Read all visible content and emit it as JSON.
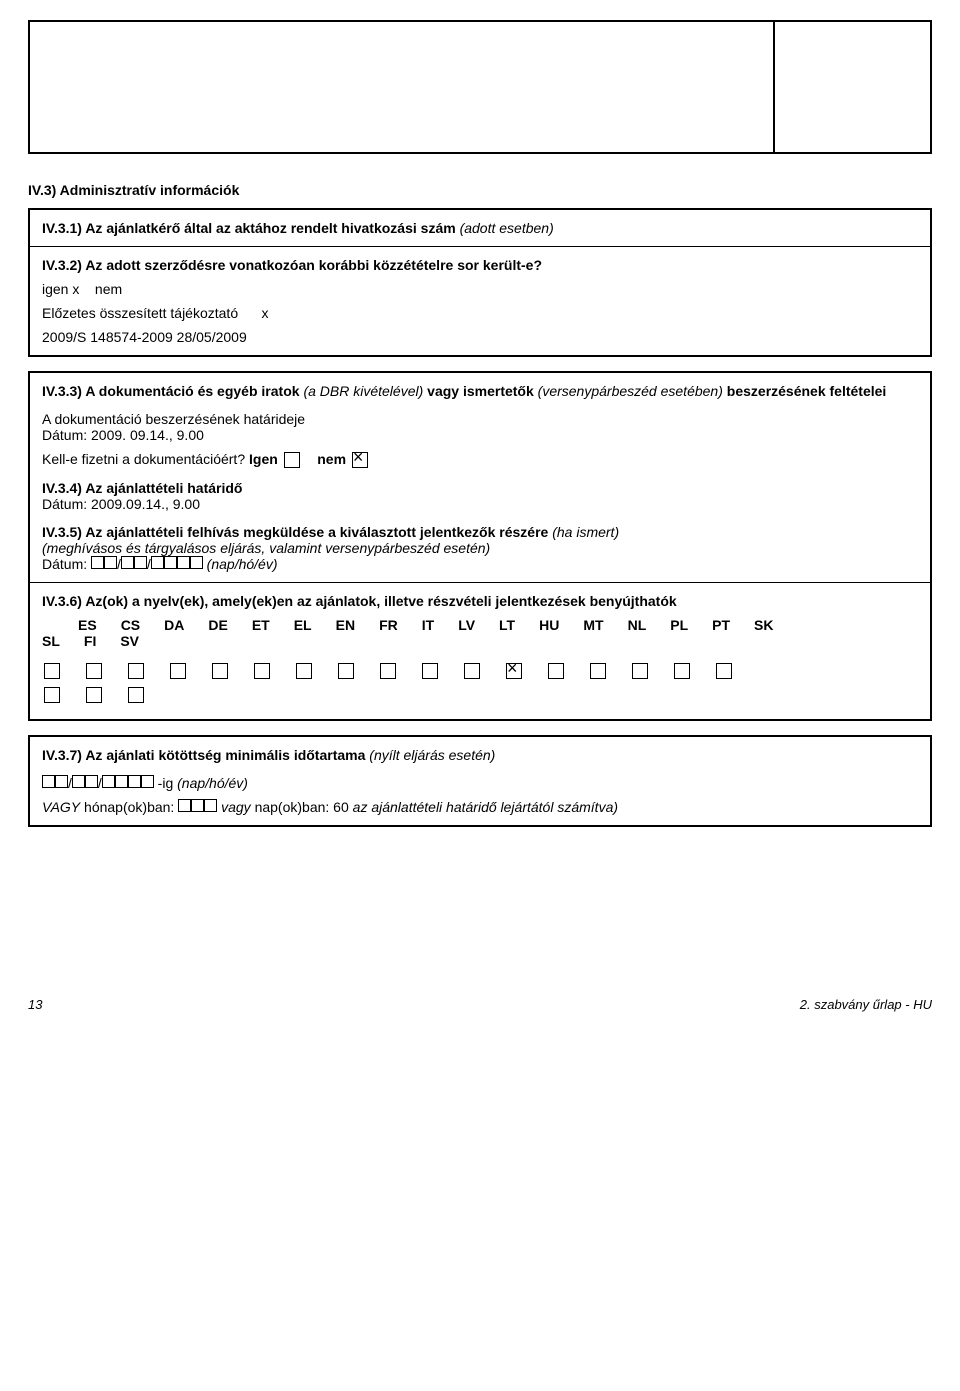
{
  "section_title": "IV.3) Adminisztratív információk",
  "box1": {
    "iv31": {
      "label_bold": "IV.3.1) Az ajánlatkérő által az aktához rendelt hivatkozási szám",
      "label_italic": " (adott esetben)"
    },
    "iv32": {
      "label": "IV.3.2) Az adott szerződésre vonatkozóan korábbi közzétételre sor került-e?",
      "yes": "igen",
      "yes_mark": "x",
      "no": "nem",
      "line2a": "Előzetes összesített tájékoztató",
      "line2_mark": "x",
      "ref": "2009/S 148574-2009 28/05/2009"
    }
  },
  "box2": {
    "iv33": {
      "label_bold": "IV.3.3) A dokumentáció és egyéb iratok ",
      "label_italic": "(a DBR kivételével)",
      "label_bold2": " vagy ismertetők ",
      "label_italic2": "(versenypárbeszéd esetében)",
      "label_bold3": " beszerzésének feltételei",
      "deadline_label": "A dokumentáció beszerzésének határideje",
      "deadline_date": "Dátum:  2009. 09.14., 9.00",
      "pay_label": "Kell-e fizetni a dokumentációért?  ",
      "pay_yes": "Igen",
      "pay_no": "nem"
    },
    "iv34": {
      "label": "IV.3.4) Az ajánlattételi határidő",
      "date": "Dátum:  2009.09.14., 9.00"
    },
    "iv35": {
      "label_bold": "IV.3.5) Az ajánlattételi felhívás megküldése a kiválasztott jelentkezők részére ",
      "label_italic": "(ha ismert)",
      "sub_italic": "(meghívásos és tárgyalásos eljárás, valamint versenypárbeszéd esetén)",
      "date_prefix": "Dátum: ",
      "date_suffix": " (nap/hó/év)"
    },
    "iv36": {
      "label": "IV.3.6) Az(ok) a nyelv(ek), amely(ek)en az ajánlatok, illetve részvételi jelentkezések benyújthatók",
      "langs_row1": [
        "ES",
        "CS",
        "DA",
        "DE",
        "ET",
        "EL",
        "EN",
        "FR",
        "IT",
        "LV",
        "LT",
        "HU",
        "MT",
        "NL",
        "PL",
        "PT",
        "SK"
      ],
      "langs_row2": [
        "SL",
        "FI",
        "SV"
      ],
      "checked_index": 11
    }
  },
  "box3": {
    "iv37": {
      "label_bold": "IV.3.7) Az ajánlati kötöttség minimális időtartama ",
      "label_italic": "(nyílt eljárás esetén)",
      "line2_suffix": " -ig ",
      "line2_italic": "(nap/hó/év)",
      "line3_prefix": "VAGY",
      "line3_a": " hónap(ok)ban: ",
      "line3_mid": " vagy ",
      "line3_b": "nap(ok)ban: 60 ",
      "line3_italic": "az ajánlattételi határidő lejártától számítva)"
    }
  },
  "footer": {
    "page": "13",
    "right": "2. szabvány űrlap - HU"
  }
}
